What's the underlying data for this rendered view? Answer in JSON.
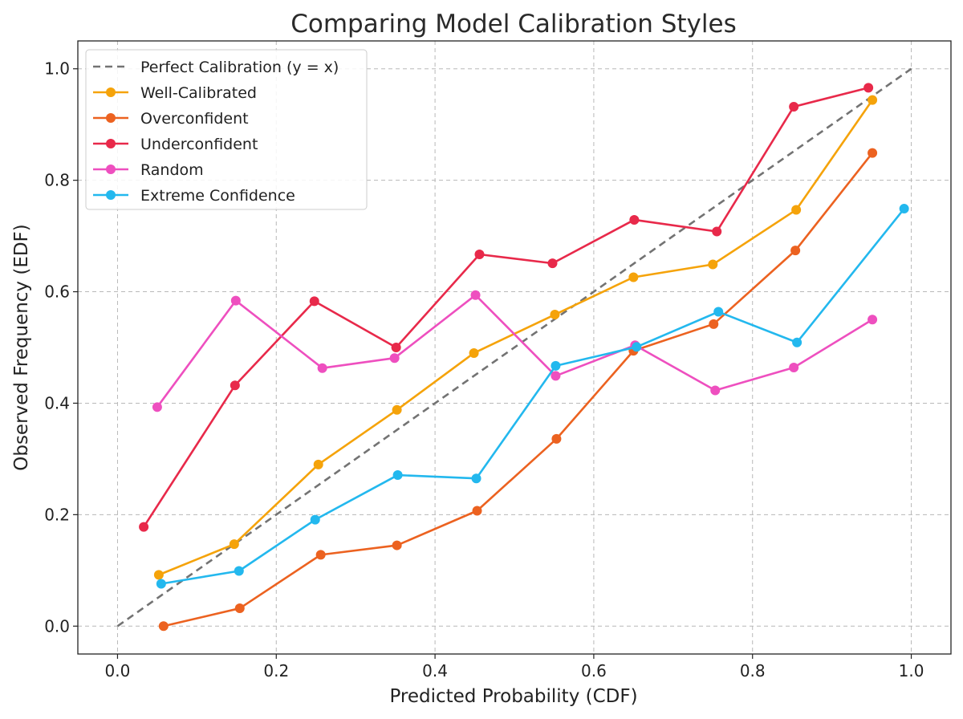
{
  "chart_data": {
    "type": "line",
    "title": "Comparing Model Calibration Styles",
    "xlabel": "Predicted Probability (CDF)",
    "ylabel": "Observed Frequency (EDF)",
    "xlim": [
      -0.05,
      1.05
    ],
    "ylim": [
      -0.05,
      1.05
    ],
    "xticks": [
      "0.0",
      "0.2",
      "0.4",
      "0.6",
      "0.8",
      "1.0"
    ],
    "yticks": [
      "0.0",
      "0.2",
      "0.4",
      "0.6",
      "0.8",
      "1.0"
    ],
    "grid": true,
    "legend_position": "upper-left",
    "reference": {
      "name": "Perfect Calibration (y = x)",
      "color": "#737373",
      "style": "dashed",
      "x": [
        0,
        1
      ],
      "y": [
        0,
        1
      ]
    },
    "series": [
      {
        "name": "Well-Calibrated",
        "color": "#f5a30a",
        "x": [
          0.052,
          0.147,
          0.253,
          0.352,
          0.449,
          0.551,
          0.65,
          0.75,
          0.855,
          0.951
        ],
        "y": [
          0.092,
          0.147,
          0.29,
          0.388,
          0.49,
          0.559,
          0.626,
          0.649,
          0.747,
          0.944
        ]
      },
      {
        "name": "Overconfident",
        "color": "#ec6220",
        "x": [
          0.058,
          0.154,
          0.256,
          0.352,
          0.453,
          0.553,
          0.65,
          0.751,
          0.854,
          0.951
        ],
        "y": [
          0.0,
          0.032,
          0.128,
          0.145,
          0.207,
          0.336,
          0.494,
          0.542,
          0.674,
          0.849
        ]
      },
      {
        "name": "Underconfident",
        "color": "#e8294a",
        "x": [
          0.033,
          0.148,
          0.248,
          0.351,
          0.456,
          0.548,
          0.651,
          0.755,
          0.852,
          0.946
        ],
        "y": [
          0.178,
          0.432,
          0.583,
          0.5,
          0.667,
          0.651,
          0.729,
          0.708,
          0.932,
          0.966
        ]
      },
      {
        "name": "Random",
        "color": "#ee4fbf",
        "x": [
          0.05,
          0.149,
          0.258,
          0.349,
          0.451,
          0.552,
          0.652,
          0.753,
          0.852,
          0.951
        ],
        "y": [
          0.393,
          0.584,
          0.463,
          0.481,
          0.594,
          0.449,
          0.504,
          0.423,
          0.464,
          0.55
        ]
      },
      {
        "name": "Extreme Confidence",
        "color": "#23b8ee",
        "x": [
          0.055,
          0.153,
          0.249,
          0.353,
          0.452,
          0.552,
          0.654,
          0.757,
          0.856,
          0.991
        ],
        "y": [
          0.076,
          0.099,
          0.191,
          0.271,
          0.265,
          0.467,
          0.501,
          0.564,
          0.509,
          0.749
        ]
      }
    ]
  }
}
